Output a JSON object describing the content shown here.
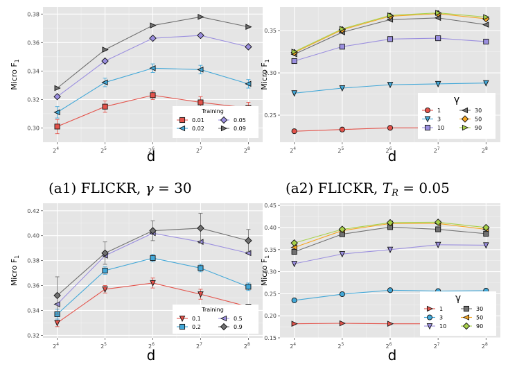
{
  "chart_data": [
    {
      "id": "a1",
      "type": "line",
      "ylabel": "Micro F1",
      "xlabel": "d",
      "x": [
        "2^4",
        "2^5",
        "2^6",
        "2^7",
        "2^8"
      ],
      "ylim": [
        0.29,
        0.385
      ],
      "yticks": [
        0.3,
        0.32,
        0.34,
        0.36,
        0.38
      ],
      "ytick_labels": [
        "0.30",
        "0.32",
        "0.34",
        "0.36",
        "0.38"
      ],
      "legend": {
        "title": "Training",
        "position": "bottom-right",
        "ncol": 2
      },
      "series": [
        {
          "name": "0.01",
          "color": "#e4534b",
          "marker": "square",
          "values": [
            0.301,
            0.315,
            0.323,
            0.318,
            0.314
          ],
          "errors": [
            0.005,
            0.004,
            0.003,
            0.004,
            0.004
          ]
        },
        {
          "name": "0.02",
          "color": "#43a8d8",
          "marker": "tri-left",
          "values": [
            0.311,
            0.332,
            0.342,
            0.341,
            0.331
          ],
          "errors": [
            0.004,
            0.003,
            0.003,
            0.003,
            0.003
          ]
        },
        {
          "name": "0.05",
          "color": "#9b8fdf",
          "marker": "diamond",
          "values": [
            0.322,
            0.347,
            0.363,
            0.365,
            0.357
          ],
          "errors": [
            0,
            0,
            0,
            0,
            0
          ]
        },
        {
          "name": "0.09",
          "color": "#707070",
          "marker": "tri-right",
          "values": [
            0.328,
            0.355,
            0.372,
            0.378,
            0.371
          ],
          "errors": [
            0,
            0,
            0,
            0,
            0
          ]
        }
      ]
    },
    {
      "id": "a2",
      "type": "line",
      "ylabel": "Micro F1",
      "xlabel": "d",
      "x": [
        "2^4",
        "2^5",
        "2^6",
        "2^7",
        "2^8"
      ],
      "ylim": [
        0.218,
        0.378
      ],
      "yticks": [
        0.25,
        0.3,
        0.35
      ],
      "ytick_labels": [
        "0.25",
        "0.30",
        "0.35"
      ],
      "legend": {
        "title": "γ",
        "position": "bottom-right",
        "ncol": 2
      },
      "series": [
        {
          "name": "1",
          "color": "#e4534b",
          "marker": "circle",
          "values": [
            0.231,
            0.233,
            0.235,
            0.235,
            0.236
          ]
        },
        {
          "name": "3",
          "color": "#43a8d8",
          "marker": "tri-down",
          "values": [
            0.276,
            0.282,
            0.286,
            0.287,
            0.288
          ]
        },
        {
          "name": "10",
          "color": "#9b8fdf",
          "marker": "square",
          "values": [
            0.314,
            0.331,
            0.34,
            0.341,
            0.337
          ]
        },
        {
          "name": "30",
          "color": "#707070",
          "marker": "tri-left",
          "values": [
            0.322,
            0.348,
            0.363,
            0.365,
            0.357
          ]
        },
        {
          "name": "50",
          "color": "#f5a623",
          "marker": "diamond",
          "values": [
            0.324,
            0.351,
            0.367,
            0.37,
            0.364
          ]
        },
        {
          "name": "90",
          "color": "#a8d14a",
          "marker": "tri-right",
          "values": [
            0.325,
            0.352,
            0.368,
            0.371,
            0.366
          ]
        }
      ]
    },
    {
      "id": "b1",
      "type": "line",
      "ylabel": "Micro F1",
      "xlabel": "d",
      "x": [
        "2^4",
        "2^5",
        "2^6",
        "2^7",
        "2^8"
      ],
      "ylim": [
        0.318,
        0.426
      ],
      "yticks": [
        0.32,
        0.34,
        0.36,
        0.38,
        0.4,
        0.42
      ],
      "ytick_labels": [
        "0.32",
        "0.34",
        "0.36",
        "0.38",
        "0.40",
        "0.42"
      ],
      "legend": {
        "title": "Training",
        "position": "bottom-right",
        "ncol": 2
      },
      "series": [
        {
          "name": "0.1",
          "color": "#e4534b",
          "marker": "tri-down",
          "values": [
            0.33,
            0.357,
            0.362,
            0.353,
            0.343
          ],
          "errors": [
            0.003,
            0.003,
            0.004,
            0.004,
            0.002
          ]
        },
        {
          "name": "0.2",
          "color": "#43a8d8",
          "marker": "square",
          "values": [
            0.337,
            0.372,
            0.382,
            0.374,
            0.359
          ],
          "errors": [
            0.004,
            0.003,
            0.003,
            0.003,
            0.003
          ]
        },
        {
          "name": "0.5",
          "color": "#9b8fdf",
          "marker": "tri-left",
          "values": [
            0.345,
            0.384,
            0.402,
            0.395,
            0.386
          ],
          "errors": [
            0,
            0,
            0,
            0,
            0
          ]
        },
        {
          "name": "0.9",
          "color": "#707070",
          "marker": "diamond",
          "values": [
            0.352,
            0.386,
            0.404,
            0.406,
            0.396
          ],
          "errors": [
            0.015,
            0.009,
            0.008,
            0.012,
            0.009
          ]
        }
      ]
    },
    {
      "id": "b2",
      "type": "line",
      "ylabel": "Micro F1",
      "xlabel": "d",
      "x": [
        "2^4",
        "2^5",
        "2^6",
        "2^7",
        "2^8"
      ],
      "ylim": [
        0.15,
        0.455
      ],
      "yticks": [
        0.15,
        0.2,
        0.25,
        0.3,
        0.35,
        0.4,
        0.45
      ],
      "ytick_labels": [
        "0.15",
        "0.20",
        "0.25",
        "0.30",
        "0.35",
        "0.40",
        "0.45"
      ],
      "legend": {
        "title": "γ",
        "position": "bottom-right",
        "ncol": 2
      },
      "series": [
        {
          "name": "1",
          "color": "#e4534b",
          "marker": "tri-right",
          "values": [
            0.182,
            0.183,
            0.182,
            0.182,
            0.183
          ]
        },
        {
          "name": "3",
          "color": "#43a8d8",
          "marker": "circle",
          "values": [
            0.235,
            0.249,
            0.258,
            0.256,
            0.257
          ]
        },
        {
          "name": "10",
          "color": "#9b8fdf",
          "marker": "tri-down",
          "values": [
            0.318,
            0.34,
            0.35,
            0.361,
            0.36
          ]
        },
        {
          "name": "30",
          "color": "#707070",
          "marker": "square",
          "values": [
            0.345,
            0.385,
            0.401,
            0.396,
            0.386
          ]
        },
        {
          "name": "50",
          "color": "#f5a623",
          "marker": "tri-left",
          "values": [
            0.355,
            0.393,
            0.409,
            0.409,
            0.396
          ]
        },
        {
          "name": "90",
          "color": "#a8d14a",
          "marker": "diamond",
          "values": [
            0.365,
            0.396,
            0.411,
            0.412,
            0.4
          ]
        }
      ]
    }
  ],
  "captions": {
    "a1": {
      "prefix": "(a1) ",
      "name": "FLICKR",
      "sep": ", ",
      "param": "γ",
      "eq": " = 30"
    },
    "a2": {
      "prefix": "(a2) ",
      "name": "FLICKR",
      "sep": ", ",
      "param": "T",
      "sub": "R",
      "eq": " = 0.05"
    }
  },
  "tick_base": "2",
  "tick_exponents": [
    "4",
    "5",
    "6",
    "7",
    "8"
  ],
  "ylabel_main": "Micro F",
  "ylabel_sub": "1"
}
